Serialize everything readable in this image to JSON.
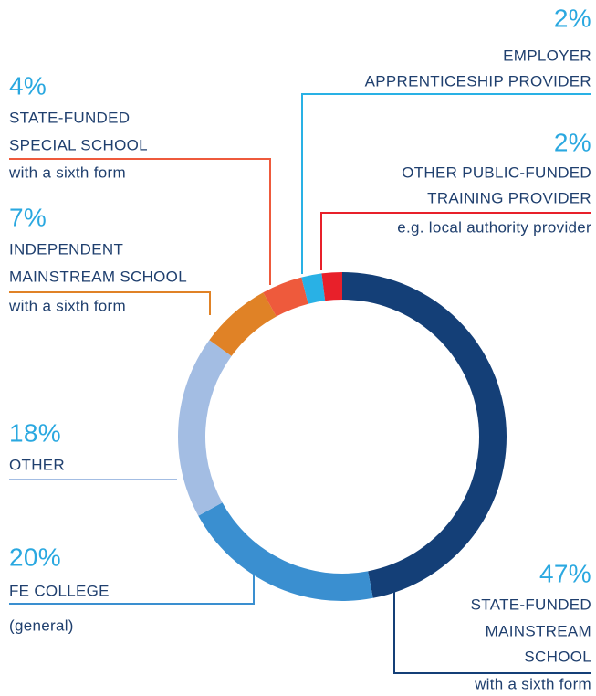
{
  "chart_data": {
    "type": "pie",
    "categories": [
      [
        "STATE-FUNDED",
        "MAINSTREAM",
        "SCHOOL"
      ],
      [
        "FE COLLEGE"
      ],
      [
        "OTHER"
      ],
      [
        "INDEPENDENT",
        "MAINSTREAM SCHOOL"
      ],
      [
        "STATE-FUNDED",
        "SPECIAL SCHOOL"
      ],
      [
        "EMPLOYER",
        "APPRENTICESHIP PROVIDER"
      ],
      [
        "OTHER PUBLIC-FUNDED",
        "TRAINING PROVIDER"
      ]
    ],
    "notes": [
      "with a sixth form",
      "(general)",
      null,
      "with a sixth form",
      "with a sixth form",
      null,
      "e.g. local authority provider"
    ],
    "values": [
      47,
      20,
      18,
      7,
      4,
      2,
      2
    ],
    "value_labels": [
      "47%",
      "20%",
      "18%",
      "7%",
      "4%",
      "2%",
      "2%"
    ],
    "colors": [
      "#143f77",
      "#3a8fd0",
      "#a3bde3",
      "#e08226",
      "#ee5a3c",
      "#29b1e5",
      "#e8202a"
    ],
    "donut": true
  }
}
